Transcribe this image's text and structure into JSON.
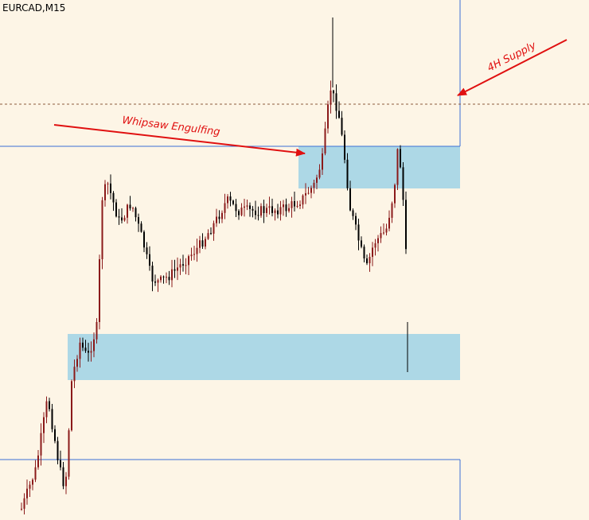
{
  "header": {
    "title": "EURCAD,M15"
  },
  "annotations": [
    "Whipsaw Engulfing",
    "4H Supply"
  ]
}
